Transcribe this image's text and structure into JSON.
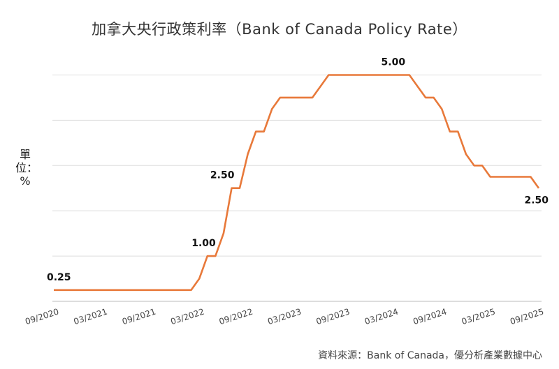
{
  "title": "加拿大央行政策利率（Bank of Canada Policy Rate）",
  "y_unit": "單位：%",
  "source": "資料來源：Bank of Canada，優分析產業數據中心",
  "colors": {
    "line": "#E8793A",
    "grid": "#dddddd",
    "axis": "#bbbbbb"
  },
  "chart_data": {
    "type": "line",
    "title": "加拿大央行政策利率（Bank of Canada Policy Rate）",
    "ylabel": "單位：%",
    "xlabel": "",
    "ylim": [
      0,
      5.5
    ],
    "grid": true,
    "legend": "none",
    "x_ticks": [
      "09/2020",
      "03/2021",
      "09/2021",
      "03/2022",
      "09/2022",
      "03/2023",
      "09/2023",
      "03/2024",
      "09/2024",
      "03/2025",
      "09/2025"
    ],
    "series": [
      {
        "x": [
          "2020-09",
          "2020-10",
          "2020-11",
          "2020-12",
          "2021-01",
          "2021-02",
          "2021-03",
          "2021-04",
          "2021-05",
          "2021-06",
          "2021-07",
          "2021-08",
          "2021-09",
          "2021-10",
          "2021-11",
          "2021-12",
          "2022-01",
          "2022-02",
          "2022-03",
          "2022-04",
          "2022-05",
          "2022-06",
          "2022-07",
          "2022-08",
          "2022-09",
          "2022-10",
          "2022-11",
          "2022-12",
          "2023-01",
          "2023-02",
          "2023-03",
          "2023-04",
          "2023-05",
          "2023-06",
          "2023-07",
          "2023-08",
          "2023-09",
          "2023-10",
          "2023-11",
          "2023-12",
          "2024-01",
          "2024-02",
          "2024-03",
          "2024-04",
          "2024-05",
          "2024-06",
          "2024-07",
          "2024-08",
          "2024-09",
          "2024-10",
          "2024-11",
          "2024-12",
          "2025-01",
          "2025-02",
          "2025-03",
          "2025-04",
          "2025-05",
          "2025-06",
          "2025-07",
          "2025-08",
          "2025-09"
        ],
        "values": [
          0.25,
          0.25,
          0.25,
          0.25,
          0.25,
          0.25,
          0.25,
          0.25,
          0.25,
          0.25,
          0.25,
          0.25,
          0.25,
          0.25,
          0.25,
          0.25,
          0.25,
          0.25,
          0.5,
          1.0,
          1.0,
          1.5,
          2.5,
          2.5,
          3.25,
          3.75,
          3.75,
          4.25,
          4.5,
          4.5,
          4.5,
          4.5,
          4.5,
          4.75,
          5.0,
          5.0,
          5.0,
          5.0,
          5.0,
          5.0,
          5.0,
          5.0,
          5.0,
          5.0,
          5.0,
          4.75,
          4.5,
          4.5,
          4.25,
          3.75,
          3.75,
          3.25,
          3.0,
          3.0,
          2.75,
          2.75,
          2.75,
          2.75,
          2.75,
          2.75,
          2.5
        ]
      }
    ],
    "annotations": [
      {
        "x": "2020-09",
        "value": 0.25,
        "text": "0.25"
      },
      {
        "x": "2022-04",
        "value": 1.0,
        "text": "1.00"
      },
      {
        "x": "2022-07",
        "value": 2.5,
        "text": "2.50"
      },
      {
        "x": "2024-03",
        "value": 5.0,
        "text": "5.00"
      },
      {
        "x": "2025-09",
        "value": 2.5,
        "text": "2.50"
      }
    ]
  }
}
